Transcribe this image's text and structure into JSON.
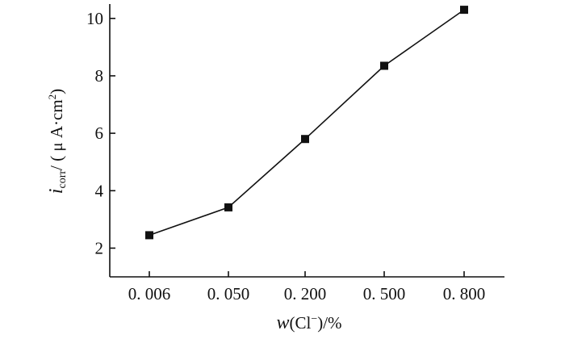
{
  "chart_data": {
    "type": "line",
    "categories": [
      "0. 006",
      "0. 050",
      "0. 200",
      "0. 500",
      "0. 800"
    ],
    "series": [
      {
        "values": [
          2.45,
          3.42,
          5.8,
          8.35,
          10.3
        ]
      }
    ],
    "y_ticks": [
      "2",
      "4",
      "6",
      "8",
      "10"
    ],
    "ylim": [
      1,
      10.5
    ],
    "grid": false,
    "xlabel": {
      "var": "w",
      "species": "Cl",
      "charge": "−",
      "unit": "/%"
    },
    "ylabel": {
      "var": "i",
      "sub": "corr",
      "unit_pre": "/ ( μ A·cm",
      "unit_sup": "2",
      "unit_post": ")"
    },
    "colors": {
      "line": "#111111",
      "marker": "#111111"
    }
  }
}
